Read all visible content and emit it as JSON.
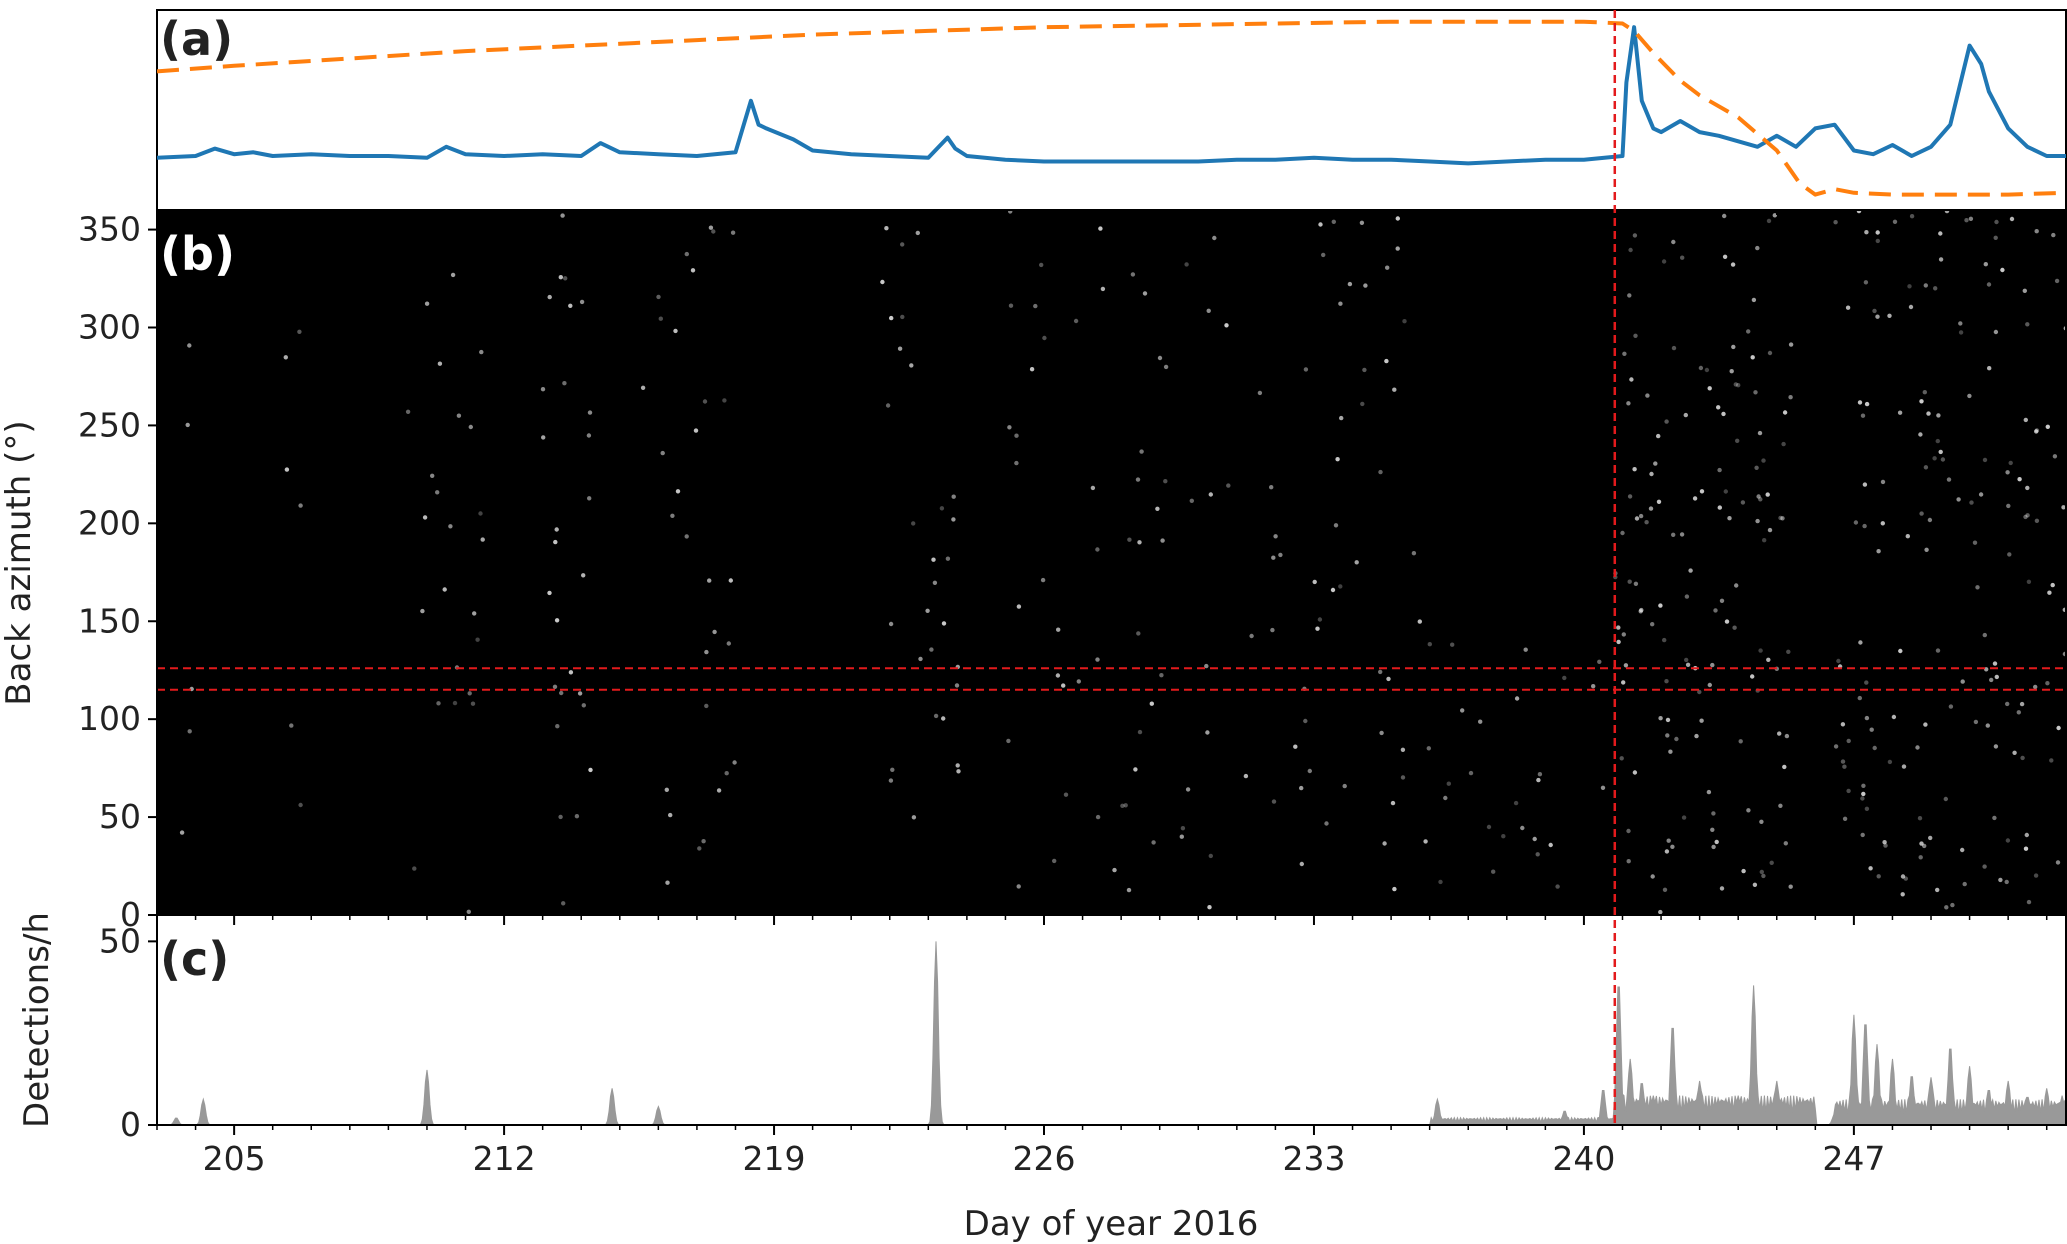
{
  "chart_data": [
    {
      "panel": "a",
      "type": "line",
      "panel_label": "(a)",
      "xlim": [
        203,
        252.5
      ],
      "ylim": [
        0,
        1
      ],
      "colors": {
        "solid": "#1f77b4",
        "dashed": "#ff7f0e"
      },
      "series": [
        {
          "style": "solid",
          "x": [
            203,
            204,
            204.5,
            205,
            205.5,
            206,
            207,
            208,
            209,
            210,
            210.5,
            211,
            212,
            213,
            214,
            214.5,
            215,
            216,
            217,
            218,
            218.4,
            218.6,
            218.8,
            219.5,
            220,
            221,
            222,
            223,
            223.5,
            223.7,
            224,
            225,
            226,
            227,
            228,
            229,
            230,
            231,
            232,
            233,
            234,
            235,
            236,
            237,
            238,
            239,
            240,
            241,
            241.1,
            241.3,
            241.5,
            241.8,
            242,
            242.5,
            243,
            243.5,
            244,
            244.5,
            245,
            245.5,
            246,
            246.5,
            247,
            247.5,
            248,
            248.5,
            249,
            249.5,
            250,
            250.3,
            250.5,
            251,
            251.5,
            252,
            252.5
          ],
          "values": [
            0.24,
            0.25,
            0.29,
            0.26,
            0.27,
            0.25,
            0.26,
            0.25,
            0.25,
            0.24,
            0.3,
            0.26,
            0.25,
            0.26,
            0.25,
            0.32,
            0.27,
            0.26,
            0.25,
            0.27,
            0.55,
            0.42,
            0.4,
            0.34,
            0.28,
            0.26,
            0.25,
            0.24,
            0.35,
            0.29,
            0.25,
            0.23,
            0.22,
            0.22,
            0.22,
            0.22,
            0.22,
            0.23,
            0.23,
            0.24,
            0.23,
            0.23,
            0.22,
            0.21,
            0.22,
            0.23,
            0.23,
            0.25,
            0.65,
            0.95,
            0.55,
            0.4,
            0.38,
            0.44,
            0.38,
            0.36,
            0.33,
            0.3,
            0.36,
            0.3,
            0.4,
            0.42,
            0.28,
            0.26,
            0.31,
            0.25,
            0.3,
            0.42,
            0.85,
            0.75,
            0.6,
            0.4,
            0.3,
            0.25,
            0.25
          ]
        },
        {
          "style": "dashed",
          "x": [
            203,
            205,
            208,
            211,
            214,
            217,
            220,
            223,
            226,
            229,
            232,
            235,
            238,
            240,
            241,
            241.3,
            241.8,
            242.5,
            243,
            244,
            245,
            245.6,
            246,
            246.5,
            247,
            248,
            249,
            250,
            251,
            252.5
          ],
          "values": [
            0.71,
            0.74,
            0.78,
            0.82,
            0.85,
            0.88,
            0.91,
            0.93,
            0.95,
            0.96,
            0.97,
            0.98,
            0.98,
            0.98,
            0.97,
            0.93,
            0.81,
            0.66,
            0.58,
            0.46,
            0.28,
            0.1,
            0.04,
            0.07,
            0.05,
            0.04,
            0.04,
            0.04,
            0.04,
            0.05
          ]
        }
      ]
    },
    {
      "panel": "b",
      "type": "scatter",
      "panel_label": "(b)",
      "ylabel": "Back azimuth (°)",
      "xlim": [
        203,
        252.5
      ],
      "ylim": [
        0,
        360
      ],
      "yticks": [
        "0",
        "50",
        "100",
        "150",
        "200",
        "250",
        "300",
        "350"
      ],
      "background": "#000000",
      "point_color": "#ffffff",
      "reference_lines": {
        "horizontal_backazimuth": [
          115,
          126
        ],
        "vertical_day": 240.8,
        "color": "#e31a1c"
      },
      "clusters": [
        {
          "x": [
            203.6,
            203.9
          ],
          "y": [
            0,
            360
          ],
          "density": 0.5
        },
        {
          "x": [
            206.2,
            206.8
          ],
          "y": [
            0,
            360
          ],
          "density": 0.35
        },
        {
          "x": [
            209.5,
            211.5
          ],
          "y": [
            0,
            360
          ],
          "density": 0.4
        },
        {
          "x": [
            213,
            214.5
          ],
          "y": [
            0,
            360
          ],
          "density": 0.6
        },
        {
          "x": [
            215.5,
            218
          ],
          "y": [
            0,
            360
          ],
          "density": 0.4
        },
        {
          "x": [
            221.8,
            223.8
          ],
          "y": [
            0,
            360
          ],
          "density": 0.5
        },
        {
          "x": [
            225,
            236
          ],
          "y": [
            0,
            360
          ],
          "density": 0.35
        },
        {
          "x": [
            236,
            240.8
          ],
          "y": [
            0,
            140
          ],
          "density": 0.45
        },
        {
          "x": [
            240.8,
            245.5
          ],
          "y": [
            0,
            360
          ],
          "density": 1.0
        },
        {
          "x": [
            246.5,
            252.5
          ],
          "y": [
            0,
            360
          ],
          "density": 0.9
        }
      ]
    },
    {
      "panel": "c",
      "type": "area",
      "panel_label": "(c)",
      "ylabel": "Detections/h",
      "xlabel": "Day of year 2016",
      "xlim": [
        203,
        252.5
      ],
      "ylim": [
        0,
        55
      ],
      "yticks": [
        "0",
        "50"
      ],
      "xticks": [
        "205",
        "212",
        "219",
        "226",
        "233",
        "240",
        "247"
      ],
      "color": "#999999",
      "peaks": {
        "x": [
          203.5,
          204.2,
          210,
          214.8,
          216,
          223.2,
          236.2,
          239.5,
          240.5,
          240.9,
          241.2,
          241.5,
          241.8,
          242.3,
          243,
          244,
          244.4,
          245,
          245.6,
          246.5,
          247,
          247.3,
          247.6,
          248,
          248.5,
          249,
          249.5,
          250,
          250.5,
          251,
          251.5,
          252,
          252.4
        ],
        "values": [
          2,
          7,
          15,
          10,
          5,
          50,
          7,
          4,
          10,
          40,
          18,
          12,
          8,
          28,
          12,
          8,
          38,
          12,
          7,
          3,
          30,
          29,
          22,
          18,
          14,
          13,
          22,
          16,
          10,
          12,
          8,
          10,
          8
        ]
      },
      "baseline_spans": [
        {
          "x": [
            236,
            240.8
          ],
          "level": 2
        },
        {
          "x": [
            240.8,
            246
          ],
          "level": 8
        },
        {
          "x": [
            246.5,
            252.5
          ],
          "level": 7
        }
      ]
    }
  ]
}
